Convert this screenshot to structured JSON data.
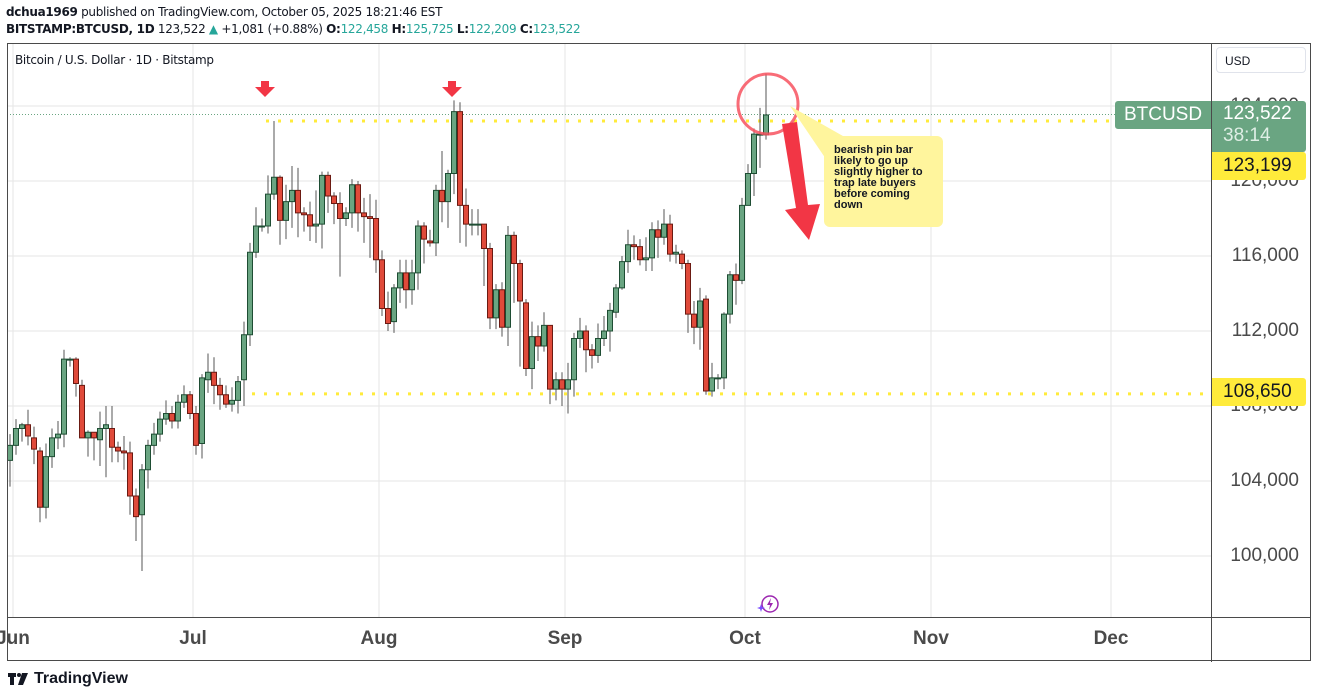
{
  "header": {
    "author": "dchua1969",
    "published_text": " published on TradingView.com, October 05, 2025 18:21:46 EST",
    "symbol": "BITSTAMP:BTCUSD, 1D",
    "last": "123,522",
    "change_arrow": "▲",
    "change": "+1,081 (+0.88%)",
    "open_label": "O:",
    "open": "122,458",
    "high_label": "H:",
    "high": "125,725",
    "low_label": "L:",
    "low": "122,209",
    "close_label": "C:",
    "close": "123,522"
  },
  "chart_title": "Bitcoin / U.S. Dollar · 1D · Bitstamp",
  "currency_button": "USD",
  "price_tag": {
    "symbol": "BTCUSD",
    "price": "123,522",
    "countdown": "38:14",
    "color": "#6aa582"
  },
  "level_tags": [
    {
      "price": "123,199",
      "value": 123199,
      "color": "#ffeb3b"
    },
    {
      "price": "108,650",
      "value": 108650,
      "color": "#ffeb3b"
    }
  ],
  "annotation": {
    "text_lines": [
      "bearish pin bar",
      "likely to go up",
      "slightly higher to",
      "trap late buyers",
      "before coming",
      "down"
    ],
    "bg_color": "#fff59d"
  },
  "footer": {
    "brand": "TradingView"
  },
  "colors": {
    "up": "#6aa582",
    "down": "#e04a3a",
    "up_border": "#1e4d33",
    "down_border": "#6b1a12",
    "arrow": "#f23645",
    "circle": "#f7525f",
    "level": "#ffeb3b",
    "grid": "#e6e6e6"
  },
  "chart_data": {
    "type": "candlestick",
    "title": "Bitcoin / U.S. Dollar · 1D · Bitstamp",
    "xlabel": "",
    "ylabel": "USD",
    "x_ticks": [
      "Jun",
      "Jul",
      "Aug",
      "Sep",
      "Oct",
      "Nov",
      "Dec"
    ],
    "y_ticks": [
      100000,
      104000,
      108000,
      112000,
      116000,
      120000,
      124000
    ],
    "ylim": [
      97600,
      126800
    ],
    "horizontal_levels": [
      123199,
      108650
    ],
    "grid": true,
    "candles": [
      [
        10,
        105100,
        105900,
        106500,
        103700
      ],
      [
        16,
        105900,
        106800,
        107300,
        105400
      ],
      [
        22,
        106800,
        107000,
        107100,
        106100
      ],
      [
        28,
        107000,
        106400,
        107800,
        105900
      ],
      [
        34,
        106300,
        105700,
        106900,
        104900
      ],
      [
        40,
        105600,
        102600,
        105800,
        101800
      ],
      [
        46,
        102600,
        105300,
        106000,
        102000
      ],
      [
        52,
        105300,
        106300,
        106800,
        104700
      ],
      [
        58,
        106300,
        106500,
        107200,
        105700
      ],
      [
        64,
        106500,
        110500,
        111000,
        105800
      ],
      [
        70,
        110500,
        110500,
        110600,
        110100
      ],
      [
        76,
        110500,
        109200,
        110600,
        108500
      ],
      [
        82,
        109100,
        106300,
        109400,
        106300
      ],
      [
        88,
        106300,
        106600,
        106700,
        105300
      ],
      [
        94,
        106600,
        106300,
        106500,
        105100
      ],
      [
        100,
        106200,
        106800,
        107700,
        104800
      ],
      [
        106,
        106800,
        107000,
        108000,
        104200
      ],
      [
        112,
        106800,
        105800,
        108000,
        105000
      ],
      [
        118,
        105800,
        105600,
        106100,
        105000
      ],
      [
        124,
        105600,
        105500,
        106400,
        104600
      ],
      [
        130,
        105500,
        103200,
        106100,
        102200
      ],
      [
        136,
        103200,
        102100,
        103600,
        100800
      ],
      [
        142,
        102200,
        104600,
        104900,
        99200
      ],
      [
        148,
        104600,
        105900,
        106200,
        103600
      ],
      [
        154,
        105900,
        106500,
        107100,
        105400
      ],
      [
        160,
        106500,
        107300,
        107700,
        106100
      ],
      [
        166,
        107300,
        107600,
        108300,
        107000
      ],
      [
        172,
        107600,
        107200,
        108000,
        106800
      ],
      [
        178,
        107200,
        108200,
        108600,
        106800
      ],
      [
        184,
        108200,
        108600,
        109100,
        107900
      ],
      [
        190,
        108600,
        107600,
        108800,
        107300
      ],
      [
        196,
        107600,
        105900,
        108000,
        105400
      ],
      [
        202,
        106000,
        109500,
        109700,
        105200
      ],
      [
        208,
        109400,
        109800,
        110800,
        108700
      ],
      [
        214,
        109800,
        109100,
        110600,
        108100
      ],
      [
        220,
        109100,
        108600,
        109500,
        107800
      ],
      [
        226,
        108600,
        108100,
        109100,
        107900
      ],
      [
        232,
        108100,
        108300,
        109000,
        107700
      ],
      [
        238,
        108300,
        109300,
        109600,
        107600
      ],
      [
        244,
        109400,
        111800,
        112500,
        108000
      ],
      [
        250,
        111800,
        116200,
        116700,
        111200
      ],
      [
        256,
        116200,
        117600,
        118600,
        115900
      ],
      [
        262,
        117600,
        117600,
        118000,
        117300
      ],
      [
        268,
        117600,
        119300,
        120300,
        117200
      ],
      [
        274,
        119300,
        120200,
        123200,
        119000
      ],
      [
        280,
        120200,
        117900,
        120300,
        116600
      ],
      [
        286,
        117900,
        118900,
        119800,
        116900
      ],
      [
        292,
        118900,
        119500,
        120800,
        117500
      ],
      [
        298,
        119500,
        118300,
        120700,
        117000
      ],
      [
        304,
        118300,
        118200,
        118600,
        117300
      ],
      [
        310,
        118200,
        117600,
        118900,
        116800
      ],
      [
        316,
        117600,
        117700,
        119500,
        116700
      ],
      [
        322,
        117700,
        120300,
        120500,
        116400
      ],
      [
        328,
        120300,
        119200,
        120500,
        118300
      ],
      [
        334,
        119200,
        118800,
        119400,
        117700
      ],
      [
        340,
        118800,
        118000,
        119400,
        114900
      ],
      [
        346,
        118000,
        118300,
        118600,
        117600
      ],
      [
        352,
        118300,
        119800,
        120100,
        117500
      ],
      [
        358,
        119800,
        118300,
        120000,
        117300
      ],
      [
        364,
        118300,
        118100,
        119100,
        116700
      ],
      [
        370,
        118100,
        118000,
        119300,
        115900
      ],
      [
        376,
        118000,
        115800,
        119000,
        115100
      ],
      [
        382,
        115800,
        113200,
        116300,
        112800
      ],
      [
        388,
        113200,
        112400,
        114100,
        112000
      ],
      [
        394,
        112500,
        114300,
        114500,
        111900
      ],
      [
        400,
        114300,
        115100,
        115800,
        113500
      ],
      [
        406,
        115100,
        114200,
        115800,
        113200
      ],
      [
        412,
        114200,
        115100,
        115800,
        113400
      ],
      [
        418,
        115100,
        117600,
        117900,
        114200
      ],
      [
        424,
        117600,
        116900,
        117800,
        115600
      ],
      [
        430,
        116800,
        116700,
        117400,
        116500
      ],
      [
        436,
        116700,
        119500,
        119800,
        116000
      ],
      [
        442,
        119500,
        118900,
        121600,
        117800
      ],
      [
        448,
        118900,
        120400,
        120600,
        117500
      ],
      [
        454,
        120400,
        123700,
        124300,
        119300
      ],
      [
        460,
        123700,
        118700,
        124200,
        116700
      ],
      [
        466,
        118700,
        117700,
        119600,
        116500
      ],
      [
        472,
        117700,
        117700,
        118500,
        117100
      ],
      [
        478,
        117700,
        117700,
        118500,
        117100
      ],
      [
        484,
        117700,
        116400,
        117700,
        114400
      ],
      [
        490,
        116400,
        112700,
        116700,
        112100
      ],
      [
        496,
        112700,
        114200,
        114500,
        112100
      ],
      [
        502,
        114200,
        112200,
        114600,
        111700
      ],
      [
        508,
        112200,
        117100,
        117600,
        111200
      ],
      [
        514,
        117100,
        115600,
        117300,
        113500
      ],
      [
        520,
        115600,
        113600,
        115800,
        110100
      ],
      [
        526,
        113500,
        110000,
        113700,
        109600
      ],
      [
        532,
        110000,
        111700,
        112500,
        108900
      ],
      [
        538,
        111700,
        111200,
        112300,
        110400
      ],
      [
        544,
        111200,
        112300,
        113000,
        110900
      ],
      [
        550,
        112300,
        108900,
        112300,
        108100
      ],
      [
        556,
        108900,
        109400,
        109800,
        108300
      ],
      [
        562,
        109400,
        108900,
        109800,
        108000
      ],
      [
        568,
        108900,
        109400,
        110300,
        107600
      ],
      [
        574,
        109400,
        111600,
        111900,
        108500
      ],
      [
        580,
        111600,
        112000,
        112700,
        111100
      ],
      [
        586,
        112000,
        111000,
        112300,
        109800
      ],
      [
        592,
        111000,
        110700,
        111300,
        110000
      ],
      [
        598,
        110700,
        111600,
        112400,
        110300
      ],
      [
        604,
        111600,
        112000,
        112800,
        111200
      ],
      [
        610,
        112000,
        113100,
        113500,
        110900
      ],
      [
        616,
        113000,
        114300,
        114500,
        112700
      ],
      [
        622,
        114300,
        115700,
        116000,
        114200
      ],
      [
        628,
        115700,
        116600,
        117400,
        115100
      ],
      [
        634,
        116600,
        116500,
        117100,
        115800
      ],
      [
        640,
        116500,
        115800,
        116900,
        115500
      ],
      [
        646,
        115800,
        115900,
        117000,
        115200
      ],
      [
        652,
        115900,
        117400,
        117800,
        115200
      ],
      [
        658,
        117400,
        117000,
        117900,
        115900
      ],
      [
        664,
        117000,
        117700,
        118500,
        116600
      ],
      [
        670,
        117700,
        116100,
        118200,
        115700
      ],
      [
        676,
        116100,
        116200,
        116600,
        115600
      ],
      [
        682,
        116100,
        115600,
        116300,
        115300
      ],
      [
        688,
        115600,
        112900,
        115800,
        111900
      ],
      [
        694,
        112900,
        112200,
        113600,
        111300
      ],
      [
        700,
        112200,
        113600,
        114300,
        111000
      ],
      [
        706,
        113700,
        108800,
        113900,
        108600
      ],
      [
        712,
        108800,
        109500,
        110300,
        108500
      ],
      [
        718,
        109500,
        109500,
        109700,
        108900
      ],
      [
        724,
        109500,
        112900,
        113000,
        108900
      ],
      [
        730,
        112900,
        115000,
        115200,
        112400
      ],
      [
        736,
        115000,
        114700,
        115600,
        113400
      ],
      [
        742,
        114700,
        118700,
        119100,
        114500
      ],
      [
        748,
        118700,
        120400,
        120900,
        118700
      ],
      [
        754,
        120400,
        122500,
        122800,
        119200
      ],
      [
        760,
        122500,
        122500,
        123900,
        120700
      ],
      [
        766,
        122458,
        123522,
        125725,
        122209
      ]
    ]
  }
}
